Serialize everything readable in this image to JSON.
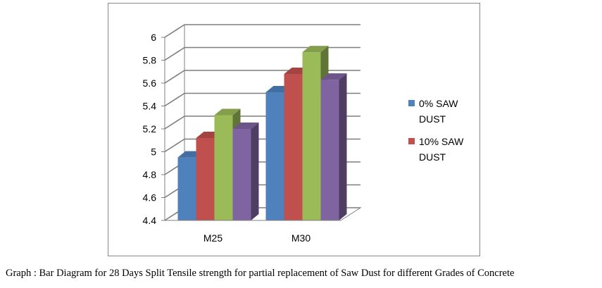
{
  "caption": "Graph : Bar Diagram for 28 Days Split Tensile strength for partial replacement of Saw Dust for different Grades of Concrete",
  "chart_data": {
    "type": "bar",
    "style": "3d-clustered-column",
    "categories": [
      "M25",
      "M30"
    ],
    "series": [
      {
        "name": "0% SAW DUST",
        "legend_lines": [
          "0% SAW",
          "DUST"
        ],
        "values": [
          4.95,
          5.52
        ],
        "color": "#4F81BD"
      },
      {
        "name": "10% SAW DUST",
        "legend_lines": [
          "10% SAW",
          "DUST"
        ],
        "values": [
          5.12,
          5.68
        ],
        "color": "#C0504D"
      },
      {
        "name": "",
        "legend_lines": [],
        "values": [
          5.32,
          5.87
        ],
        "color": "#9BBB59"
      },
      {
        "name": "",
        "legend_lines": [],
        "values": [
          5.2,
          5.63
        ],
        "color": "#8064A2"
      }
    ],
    "yticks": [
      "4.4",
      "4.6",
      "4.8",
      "5",
      "5.2",
      "5.4",
      "5.6",
      "5.8",
      "6"
    ],
    "ylim": [
      4.4,
      6.0
    ],
    "grid": true,
    "legend_position": "right"
  }
}
